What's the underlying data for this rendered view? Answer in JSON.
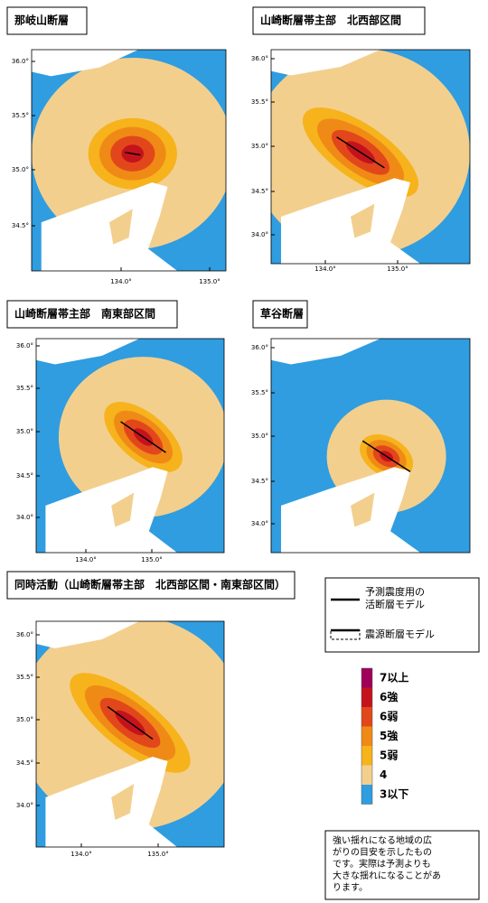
{
  "panels": [
    {
      "title": "那岐山断層",
      "lat_labels": [
        "36.0°",
        "35.5°",
        "35.0°",
        "34.5°"
      ],
      "lon_labels": [
        "134.0°",
        "135.0°"
      ]
    },
    {
      "title": "山崎断層帯主部　北西部区間",
      "lat_labels": [
        "36.0°",
        "35.5°",
        "35.0°",
        "34.5°",
        "34.0°"
      ],
      "lon_labels": [
        "134.0°",
        "135.0°"
      ]
    },
    {
      "title": "山崎断層帯主部　南東部区間",
      "lat_labels": [
        "36.0°",
        "35.5°",
        "35.0°",
        "34.5°",
        "34.0°"
      ],
      "lon_labels": [
        "134.0°",
        "135.0°"
      ]
    },
    {
      "title": "草谷断層",
      "lat_labels": [
        "36.0°",
        "35.5°",
        "35.0°",
        "34.5°",
        "34.0°"
      ],
      "lon_labels": []
    },
    {
      "title": "同時活動（山崎断層帯主部　北西部区間・南東部区間）",
      "lat_labels": [
        "36.0°",
        "35.5°",
        "35.0°",
        "34.5°",
        "34.0°"
      ],
      "lon_labels": [
        "134.0°",
        "135.0°"
      ]
    }
  ],
  "legend": {
    "fault_model": [
      "予測震度用の",
      "活断層モデル"
    ],
    "source_model": "震源断層モデル",
    "scale": [
      "7以上",
      "6強",
      "6弱",
      "5強",
      "5弱",
      "4",
      "3以下"
    ]
  },
  "note": [
    "強い揺れになる地域の広",
    "がりの目安を示したもの",
    "です。実際は予測よりも",
    "大きな揺れになることがあ",
    "ります。"
  ]
}
